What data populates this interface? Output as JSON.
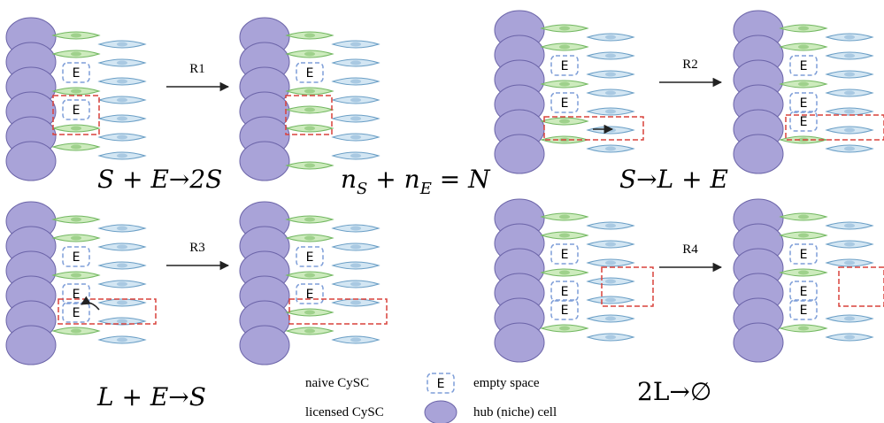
{
  "panels": [
    {
      "empty_labels": [
        "E",
        "E"
      ]
    },
    {
      "empty_labels": [
        "E"
      ]
    },
    {
      "empty_labels": [
        "E",
        "E"
      ]
    },
    {
      "empty_labels": [
        "E",
        "E",
        "E"
      ]
    },
    {
      "empty_labels": [
        "E",
        "E",
        "E"
      ]
    },
    {
      "empty_labels": [
        "E",
        "E"
      ]
    },
    {
      "empty_labels": [
        "E",
        "E",
        "E"
      ]
    },
    {
      "empty_labels": [
        "E",
        "E",
        "E"
      ]
    }
  ],
  "reactions": [
    "R1",
    "R2",
    "R3",
    "R4"
  ],
  "equations": {
    "r1": "S + E→2S",
    "conservation": [
      "n",
      "S",
      " + n",
      "E",
      " = N"
    ],
    "r2": "S→L + E",
    "r3": "L + E→S",
    "r4": "2L→∅"
  },
  "legend": {
    "naive": "naive CySC",
    "licensed": "licensed CySC",
    "empty_symbol": "E",
    "empty": "empty space",
    "hub": "hub (niche) cell"
  }
}
